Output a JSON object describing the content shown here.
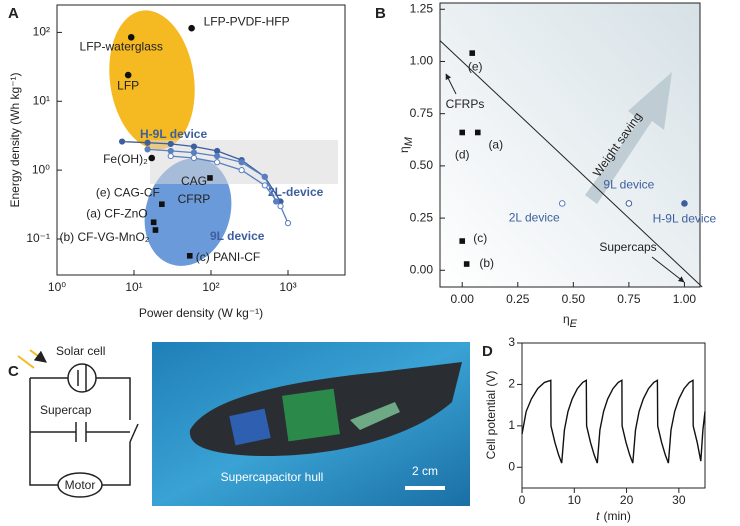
{
  "chart_data": [
    {
      "panel": "A",
      "type": "scatter",
      "xscale": "log",
      "yscale": "log",
      "xlabel": "Power density (W kg⁻¹)",
      "ylabel": "Energy density (Wh kg⁻¹)",
      "xlim": [
        1,
        5500
      ],
      "ylim": [
        0.03,
        250
      ],
      "xticks": [
        {
          "value": 1,
          "label": "10⁰"
        },
        {
          "value": 10,
          "label": "10¹"
        },
        {
          "value": 100,
          "label": "10²"
        },
        {
          "value": 1000,
          "label": "10³"
        }
      ],
      "yticks": [
        {
          "value": 0.1,
          "label": "10⁻¹"
        },
        {
          "value": 1,
          "label": "10⁰"
        },
        {
          "value": 10,
          "label": "10¹"
        },
        {
          "value": 100,
          "label": "10²"
        }
      ],
      "points": [
        {
          "label": "LFP-PVDF-HFP",
          "x": 56,
          "y": 115,
          "marker": "circle"
        },
        {
          "label": "LFP-waterglass",
          "x": 9.2,
          "y": 85,
          "marker": "circle"
        },
        {
          "label": "LFP",
          "x": 8.4,
          "y": 24,
          "marker": "circle"
        },
        {
          "label": "Fe(OH)₂",
          "x": 17,
          "y": 1.5,
          "marker": "circle"
        },
        {
          "label": [
            "CAG",
            "CFRP"
          ],
          "x": 97,
          "y": 0.77,
          "marker": "square"
        },
        {
          "label": "(e) CAG-CF",
          "x": 23,
          "y": 0.32,
          "marker": "square"
        },
        {
          "label": "(a) CF-ZnO",
          "x": 18,
          "y": 0.175,
          "marker": "square"
        },
        {
          "label": "(b) CF-VG-MnO₂",
          "x": 19,
          "y": 0.135,
          "marker": "square"
        },
        {
          "label": "(c) PANI-CF",
          "x": 53,
          "y": 0.057,
          "marker": "square"
        }
      ],
      "series": [
        {
          "name": "H-9L device",
          "color": "#3d5f9e",
          "marker": "filled",
          "x": [
            7,
            15,
            30,
            60,
            120,
            250,
            500,
            800
          ],
          "y": [
            2.6,
            2.5,
            2.4,
            2.2,
            1.9,
            1.4,
            0.8,
            0.35
          ]
        },
        {
          "name": "2L-device",
          "color": "#5a7fc0",
          "marker": "filled",
          "x": [
            15,
            30,
            60,
            120,
            250,
            500,
            700
          ],
          "y": [
            2.0,
            1.9,
            1.8,
            1.6,
            1.3,
            0.8,
            0.35
          ]
        },
        {
          "name": "9L device",
          "color": "#5a7fc0",
          "marker": "open",
          "x": [
            30,
            60,
            120,
            250,
            500,
            800,
            1000
          ],
          "y": [
            1.6,
            1.5,
            1.3,
            1.0,
            0.6,
            0.3,
            0.17
          ]
        }
      ]
    },
    {
      "panel": "B",
      "type": "scatter",
      "xlabel_symbol": "η",
      "xlabel_sub": "E",
      "ylabel_symbol": "η",
      "ylabel_sub": "M",
      "xlim": [
        -0.1,
        1.07
      ],
      "ylim": [
        -0.08,
        1.28
      ],
      "xticks": [
        {
          "value": 0,
          "label": "0.00"
        },
        {
          "value": 0.25,
          "label": "0.25"
        },
        {
          "value": 0.5,
          "label": "0.50"
        },
        {
          "value": 0.75,
          "label": "0.75"
        },
        {
          "value": 1,
          "label": "1.00"
        }
      ],
      "yticks": [
        {
          "value": 0,
          "label": "0.00"
        },
        {
          "value": 0.25,
          "label": "0.25"
        },
        {
          "value": 0.5,
          "label": "0.50"
        },
        {
          "value": 0.75,
          "label": "0.75"
        },
        {
          "value": 1,
          "label": "1.00"
        },
        {
          "value": 1.25,
          "label": "1.25"
        }
      ],
      "reference_line": {
        "x": [
          0,
          1
        ],
        "y": [
          1,
          0
        ]
      },
      "points": [
        {
          "label": "(e)",
          "x": 0.045,
          "y": 1.04,
          "marker": "square",
          "color": "#111111"
        },
        {
          "label": "(a)",
          "x": 0.07,
          "y": 0.66,
          "marker": "square",
          "color": "#111111"
        },
        {
          "label": "(d)",
          "x": 0.0,
          "y": 0.66,
          "marker": "square",
          "color": "#111111"
        },
        {
          "label": "(c)",
          "x": 0.0,
          "y": 0.14,
          "marker": "square",
          "color": "#111111"
        },
        {
          "label": "(b)",
          "x": 0.02,
          "y": 0.03,
          "marker": "square",
          "color": "#111111"
        },
        {
          "label": "2L device",
          "x": 0.45,
          "y": 0.32,
          "marker": "open",
          "color": "#5a7fc0"
        },
        {
          "label": "9L device",
          "x": 0.75,
          "y": 0.32,
          "marker": "open",
          "color": "#3d5f9e"
        },
        {
          "label": "H-9L device",
          "x": 1.0,
          "y": 0.32,
          "marker": "circle",
          "color": "#3d5f9e"
        }
      ],
      "annotations": [
        "CFRPs",
        "Supercaps",
        "Weight saving"
      ]
    },
    {
      "panel": "D",
      "type": "line",
      "xlabel_var": "t",
      "xlabel": "(min)",
      "ylabel": "Cell potential (V)",
      "xlim": [
        0,
        35
      ],
      "xticks": [
        0,
        10,
        20,
        30
      ],
      "ylim": [
        -0.5,
        3
      ],
      "yticks": [
        0,
        1,
        2,
        3
      ],
      "color": "#111111",
      "x": [
        0,
        0.8,
        1.8,
        3,
        4.3,
        5.5,
        5.55,
        6.3,
        7.0,
        7.6,
        8.1,
        8.8,
        9.6,
        10.6,
        11.6,
        12.3,
        12.35,
        13.1,
        13.8,
        14.4,
        14.9,
        15.6,
        16.4,
        17.4,
        18.4,
        19.1,
        19.15,
        19.9,
        20.6,
        21.2,
        21.7,
        22.4,
        23.2,
        24.2,
        25.2,
        25.9,
        25.95,
        26.7,
        27.4,
        28.0,
        28.5,
        29.2,
        30.0,
        31.0,
        32.0,
        32.7,
        32.75,
        33.5,
        34.2,
        34.6,
        35
      ],
      "values": [
        0.8,
        1.35,
        1.65,
        1.9,
        2.05,
        2.1,
        1.0,
        0.6,
        0.3,
        0.1,
        0.9,
        1.35,
        1.65,
        1.9,
        2.05,
        2.1,
        1.0,
        0.6,
        0.3,
        0.1,
        0.9,
        1.35,
        1.65,
        1.9,
        2.05,
        2.1,
        1.0,
        0.6,
        0.3,
        0.1,
        0.9,
        1.35,
        1.65,
        1.9,
        2.05,
        2.1,
        1.0,
        0.6,
        0.3,
        0.1,
        0.9,
        1.35,
        1.65,
        1.9,
        2.05,
        2.1,
        1.0,
        0.6,
        0.15,
        0.9,
        1.35
      ]
    }
  ],
  "panel_c": {
    "panel": "C",
    "solar_cell": "Solar cell",
    "supercap": "Supercap",
    "motor": "Motor",
    "caption": "Supercapacitor hull",
    "scale_bar": "2 cm"
  }
}
